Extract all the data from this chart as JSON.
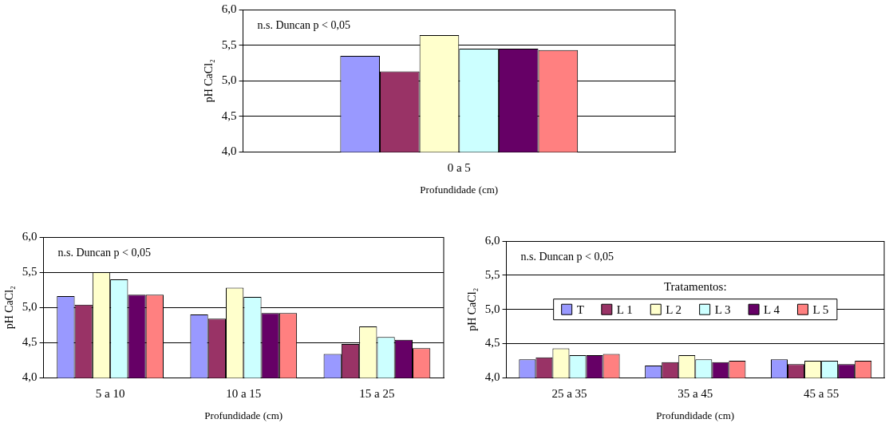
{
  "chart_data": [
    {
      "type": "bar",
      "categories": [
        "0 a 5"
      ],
      "xlabel": "Profundidade (cm)",
      "ylabel": "pH CaCl₂",
      "annotations": [
        "n.s. Duncan p < 0,05"
      ],
      "ylim": [
        4,
        6
      ],
      "yticks": [
        {
          "value": 4,
          "label": "4,0"
        },
        {
          "value": 4.5,
          "label": "4,5"
        },
        {
          "value": 5,
          "label": "5,0"
        },
        {
          "value": 5.5,
          "label": "5,5"
        },
        {
          "value": 6,
          "label": "6,0"
        }
      ],
      "grid": "y",
      "series": [
        {
          "color": "#9999ff",
          "values": [
            5.35
          ]
        },
        {
          "color": "#993366",
          "values": [
            5.13
          ]
        },
        {
          "color": "#ffffcc",
          "values": [
            5.64
          ]
        },
        {
          "color": "#ccffff",
          "values": [
            5.45
          ]
        },
        {
          "color": "#660066",
          "values": [
            5.45
          ]
        },
        {
          "color": "#ff8080",
          "values": [
            5.43
          ]
        }
      ]
    },
    {
      "type": "bar",
      "categories": [
        "5 a 10",
        "10 a 15",
        "15 a 25"
      ],
      "xlabel": "Profundidade (cm)",
      "ylabel": "pH CaCl₂",
      "annotations": [
        "n.s. Duncan p < 0,05"
      ],
      "ylim": [
        4,
        6
      ],
      "yticks": [
        {
          "value": 4,
          "label": "4,0"
        },
        {
          "value": 4.5,
          "label": "4,5"
        },
        {
          "value": 5,
          "label": "5,0"
        },
        {
          "value": 5.5,
          "label": "5,5"
        },
        {
          "value": 6,
          "label": "6,0"
        }
      ],
      "grid": "y",
      "series": [
        {
          "color": "#9999ff",
          "values": [
            5.16,
            4.9,
            4.34
          ]
        },
        {
          "color": "#993366",
          "values": [
            5.04,
            4.84,
            4.48
          ]
        },
        {
          "color": "#ffffcc",
          "values": [
            5.5,
            5.28,
            4.73
          ]
        },
        {
          "color": "#ccffff",
          "values": [
            5.4,
            5.15,
            4.58
          ]
        },
        {
          "color": "#660066",
          "values": [
            5.18,
            4.92,
            4.54
          ]
        },
        {
          "color": "#ff8080",
          "values": [
            5.18,
            4.92,
            4.42
          ]
        }
      ]
    },
    {
      "type": "bar",
      "categories": [
        "25 a 35",
        "35 a 45",
        "45 a 55"
      ],
      "xlabel": "Profundidade (cm)",
      "ylabel": "pH CaCl₂",
      "annotations": [
        "n.s. Duncan p < 0,05"
      ],
      "ylim": [
        4,
        6
      ],
      "yticks": [
        {
          "value": 4,
          "label": "4,0"
        },
        {
          "value": 4.5,
          "label": "4,5"
        },
        {
          "value": 5,
          "label": "5,0"
        },
        {
          "value": 5.5,
          "label": "5,5"
        },
        {
          "value": 6,
          "label": "6,0"
        }
      ],
      "grid": "y",
      "legend": "center",
      "legend_title": "Tratamentos:",
      "series": [
        {
          "name": "T",
          "color": "#9999ff",
          "values": [
            4.27,
            4.18,
            4.27
          ]
        },
        {
          "name": "L 1",
          "color": "#993366",
          "values": [
            4.3,
            4.23,
            4.2
          ]
        },
        {
          "name": "L 2",
          "color": "#ffffcc",
          "values": [
            4.43,
            4.33,
            4.25
          ]
        },
        {
          "name": "L 3",
          "color": "#ccffff",
          "values": [
            4.33,
            4.27,
            4.25
          ]
        },
        {
          "name": "L 4",
          "color": "#660066",
          "values": [
            4.33,
            4.23,
            4.2
          ]
        },
        {
          "name": "L 5",
          "color": "#ff8080",
          "values": [
            4.35,
            4.25,
            4.25
          ]
        }
      ]
    }
  ]
}
